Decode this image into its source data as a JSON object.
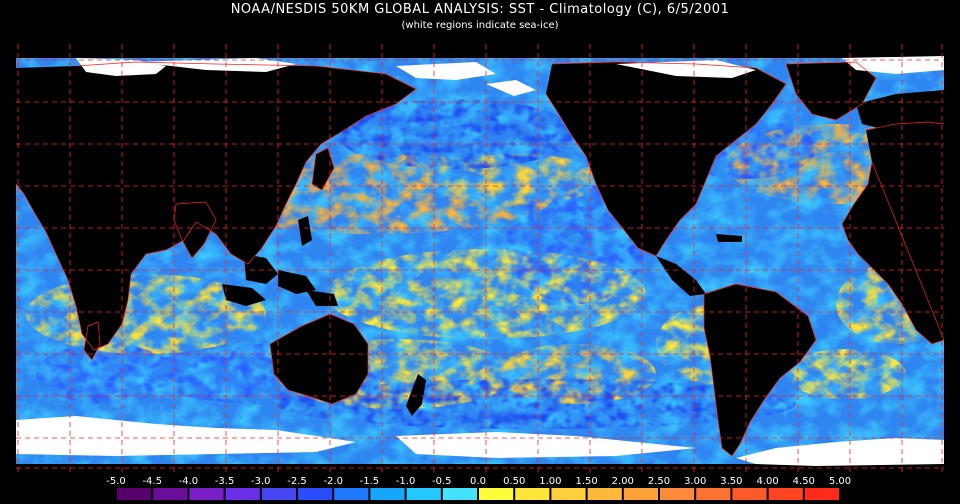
{
  "title": "NOAA/NESDIS 50KM GLOBAL ANALYSIS: SST - Climatology (C), 6/5/2001",
  "subtitle": "(white regions indicate sea-ice)",
  "colorbar": {
    "labels": [
      "-5.0",
      "-4.5",
      "-4.0",
      "-3.5",
      "-3.0",
      "-2.5",
      "-2.0",
      "-1.5",
      "-1.0",
      "-0.5",
      "0.0",
      "0.50",
      "1.00",
      "1.50",
      "2.00",
      "2.50",
      "3.00",
      "3.50",
      "4.00",
      "4.50",
      "5.00"
    ],
    "colors": [
      "#5a006e",
      "#6a0d9a",
      "#7a1fc6",
      "#6a2fe8",
      "#4646f5",
      "#2a4cff",
      "#1e78ff",
      "#16a6ff",
      "#22c8ff",
      "#44e2ff",
      "#fffc3a",
      "#ffe43a",
      "#ffce3a",
      "#ffb83a",
      "#ffa23a",
      "#ff8a3a",
      "#ff7232",
      "#ff5a2a",
      "#ff4422",
      "#ff2a1a"
    ]
  },
  "colors": {
    "background": "#000000",
    "land": "#000000",
    "ice": "#ffffff",
    "grid": "#ff2020",
    "coast": "#ff2020"
  }
}
